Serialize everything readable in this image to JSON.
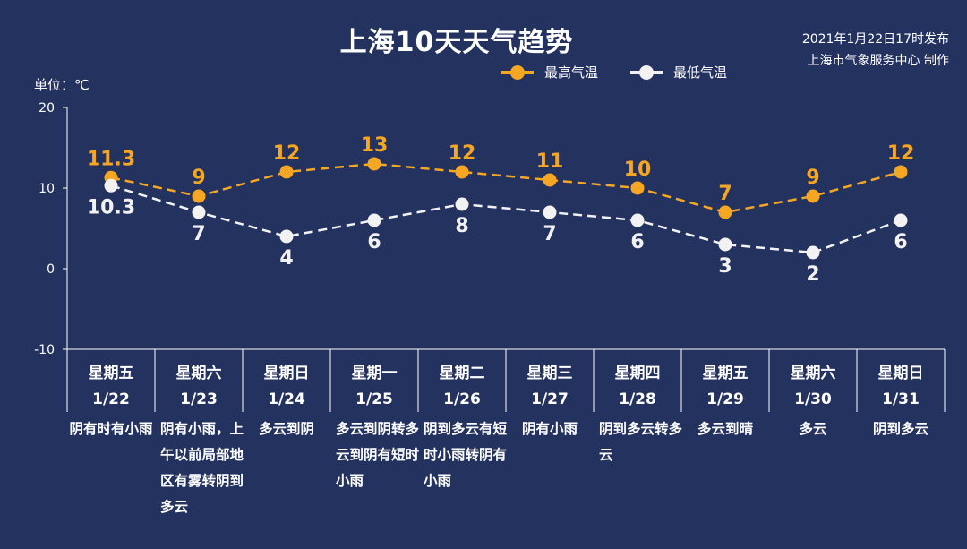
{
  "header": {
    "title": "上海10天天气趋势",
    "published": "2021年1月22日17时发布",
    "producer": "上海市气象服务中心 制作"
  },
  "chart_data": {
    "type": "line",
    "unit_label": "单位：℃",
    "ylim": [
      -10,
      20
    ],
    "yticks": [
      "20",
      "10",
      "0",
      "-10"
    ],
    "ytick_values": [
      20,
      10,
      0,
      -10
    ],
    "categories": [
      {
        "weekday": "星期五",
        "date": "1/22",
        "weather": "阴有时有小雨"
      },
      {
        "weekday": "星期六",
        "date": "1/23",
        "weather": "阴有小雨，上午以前局部地区有雾转阴到多云"
      },
      {
        "weekday": "星期日",
        "date": "1/24",
        "weather": "多云到阴"
      },
      {
        "weekday": "星期一",
        "date": "1/25",
        "weather": "多云到阴转多云到阴有短时小雨"
      },
      {
        "weekday": "星期二",
        "date": "1/26",
        "weather": "阴到多云有短时小雨转阴有小雨"
      },
      {
        "weekday": "星期三",
        "date": "1/27",
        "weather": "阴有小雨"
      },
      {
        "weekday": "星期四",
        "date": "1/28",
        "weather": "阴到多云转多云"
      },
      {
        "weekday": "星期五",
        "date": "1/29",
        "weather": "多云到晴"
      },
      {
        "weekday": "星期六",
        "date": "1/30",
        "weather": "多云"
      },
      {
        "weekday": "星期日",
        "date": "1/31",
        "weather": "阴到多云"
      }
    ],
    "series": [
      {
        "name": "最高气温",
        "color": "#f5a623",
        "values": [
          11.3,
          9,
          12,
          13,
          12,
          11,
          10,
          7,
          9,
          12
        ],
        "labels": [
          "11.3",
          "9",
          "12",
          "13",
          "12",
          "11",
          "10",
          "7",
          "9",
          "12"
        ]
      },
      {
        "name": "最低气温",
        "color": "#f2f2f2",
        "values": [
          10.3,
          7,
          4,
          6,
          8,
          7,
          6,
          3,
          2,
          6
        ],
        "labels": [
          "10.3",
          "7",
          "4",
          "6",
          "8",
          "7",
          "6",
          "3",
          "2",
          "6"
        ]
      }
    ],
    "line_style": "dashed",
    "grid": false,
    "legend_position": "top"
  }
}
